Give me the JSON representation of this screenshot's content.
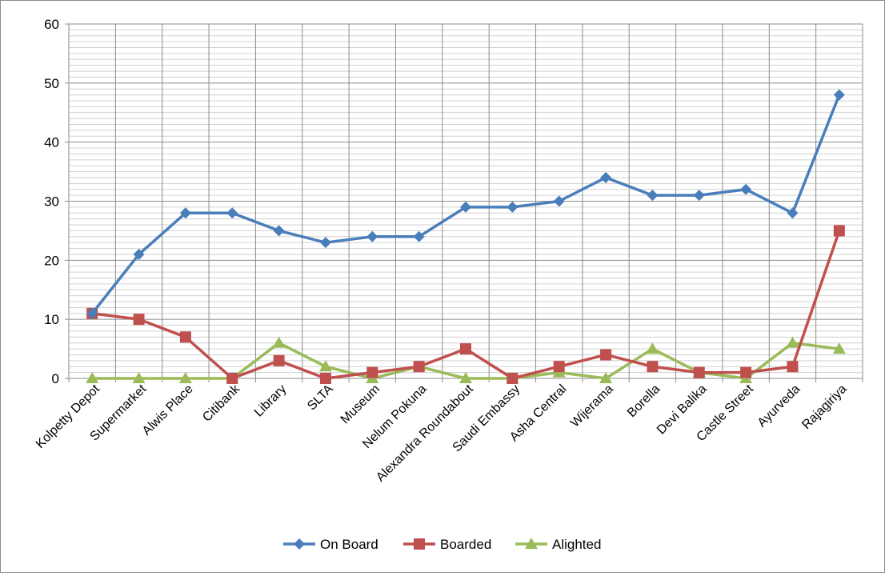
{
  "chart_data": {
    "type": "line",
    "title": "",
    "xlabel": "",
    "ylabel": "",
    "ylim": [
      0,
      60
    ],
    "ytick_step": 10,
    "minor_grid": true,
    "legend_position": "bottom",
    "categories": [
      "Kolpetty Depot",
      "Supermarket",
      "Alwis Place",
      "Citibank",
      "Library",
      "SLTA",
      "Museum",
      "Nelum Pokuna",
      "Alexandra Roundabout",
      "Saudi Embassy",
      "Asha Central",
      "Wijerama",
      "Borella",
      "Devi Balika",
      "Castle Street",
      "Ayurveda",
      "Rajagiriya"
    ],
    "series": [
      {
        "name": "On Board",
        "color": "#4a7ebb",
        "marker": "diamond",
        "values": [
          11,
          21,
          28,
          28,
          25,
          23,
          24,
          24,
          29,
          29,
          30,
          34,
          31,
          31,
          32,
          28,
          48
        ]
      },
      {
        "name": "Boarded",
        "color": "#c0504d",
        "marker": "square",
        "values": [
          11,
          10,
          7,
          0,
          3,
          0,
          1,
          2,
          5,
          0,
          2,
          4,
          2,
          1,
          1,
          2,
          25
        ]
      },
      {
        "name": "Alighted",
        "color": "#9bbb59",
        "marker": "triangle",
        "values": [
          0,
          0,
          0,
          0,
          6,
          2,
          0,
          2,
          0,
          0,
          1,
          0,
          5,
          1,
          0,
          6,
          5
        ]
      }
    ]
  }
}
